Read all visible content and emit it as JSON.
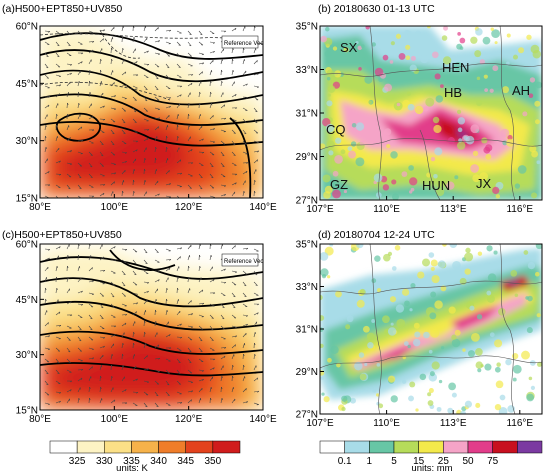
{
  "chart_data": [
    {
      "type": "heatmap",
      "title": "(a)H500+EPT850+UV850",
      "lon_ticks": [
        "80°E",
        "100°E",
        "120°E",
        "140°E"
      ],
      "lat_ticks": [
        "60°N",
        "45°N",
        "30°N",
        "15°N"
      ],
      "xlim": [
        80,
        140
      ],
      "ylim": [
        15,
        60
      ],
      "legend_text": "Reference Vector",
      "fields": [
        "geopotential height 500 hPa (contours)",
        "equivalent potential temperature 850 hPa (shading)",
        "wind 850 hPa (vectors)"
      ]
    },
    {
      "type": "heatmap",
      "title": "(b) 20180630 01-13 UTC",
      "lon_ticks": [
        "107°E",
        "110°E",
        "113°E",
        "116°E"
      ],
      "lat_ticks": [
        "35°N",
        "33°N",
        "31°N",
        "29°N",
        "27°N"
      ],
      "xlim": [
        107,
        117
      ],
      "ylim": [
        27,
        35
      ],
      "region_labels": [
        "SX",
        "HEN",
        "HB",
        "AH",
        "CQ",
        "GZ",
        "HUN",
        "JX"
      ]
    },
    {
      "type": "heatmap",
      "title": "(c)H500+EPT850+UV850",
      "lon_ticks": [
        "80°E",
        "100°E",
        "120°E",
        "140°E"
      ],
      "lat_ticks": [
        "60°N",
        "45°N",
        "30°N",
        "15°N"
      ],
      "xlim": [
        80,
        140
      ],
      "ylim": [
        15,
        60
      ],
      "legend_text": "Reference Vector"
    },
    {
      "type": "heatmap",
      "title": "(d) 20180704 12-24 UTC",
      "lon_ticks": [
        "107°E",
        "110°E",
        "113°E",
        "116°E"
      ],
      "lat_ticks": [
        "35°N",
        "33°N",
        "31°N",
        "29°N",
        "27°N"
      ],
      "xlim": [
        107,
        117
      ],
      "ylim": [
        27,
        35
      ]
    }
  ],
  "colorbar_left": {
    "levels": [
      "325",
      "330",
      "335",
      "340",
      "345",
      "350"
    ],
    "colors": [
      "#ffffff",
      "#fdf3c4",
      "#fbe087",
      "#f6b24a",
      "#ef7d2a",
      "#e3421d",
      "#d01c1c"
    ],
    "units": "units: K"
  },
  "colorbar_right": {
    "levels": [
      "0.1",
      "1",
      "5",
      "15",
      "25",
      "50",
      "75"
    ],
    "colors": [
      "#ffffff",
      "#a8dce8",
      "#67c6a5",
      "#b6dc5a",
      "#f3e94b",
      "#f5a4c7",
      "#e23d8a",
      "#c8101f",
      "#7b3aa1"
    ],
    "units": "units: mm"
  }
}
